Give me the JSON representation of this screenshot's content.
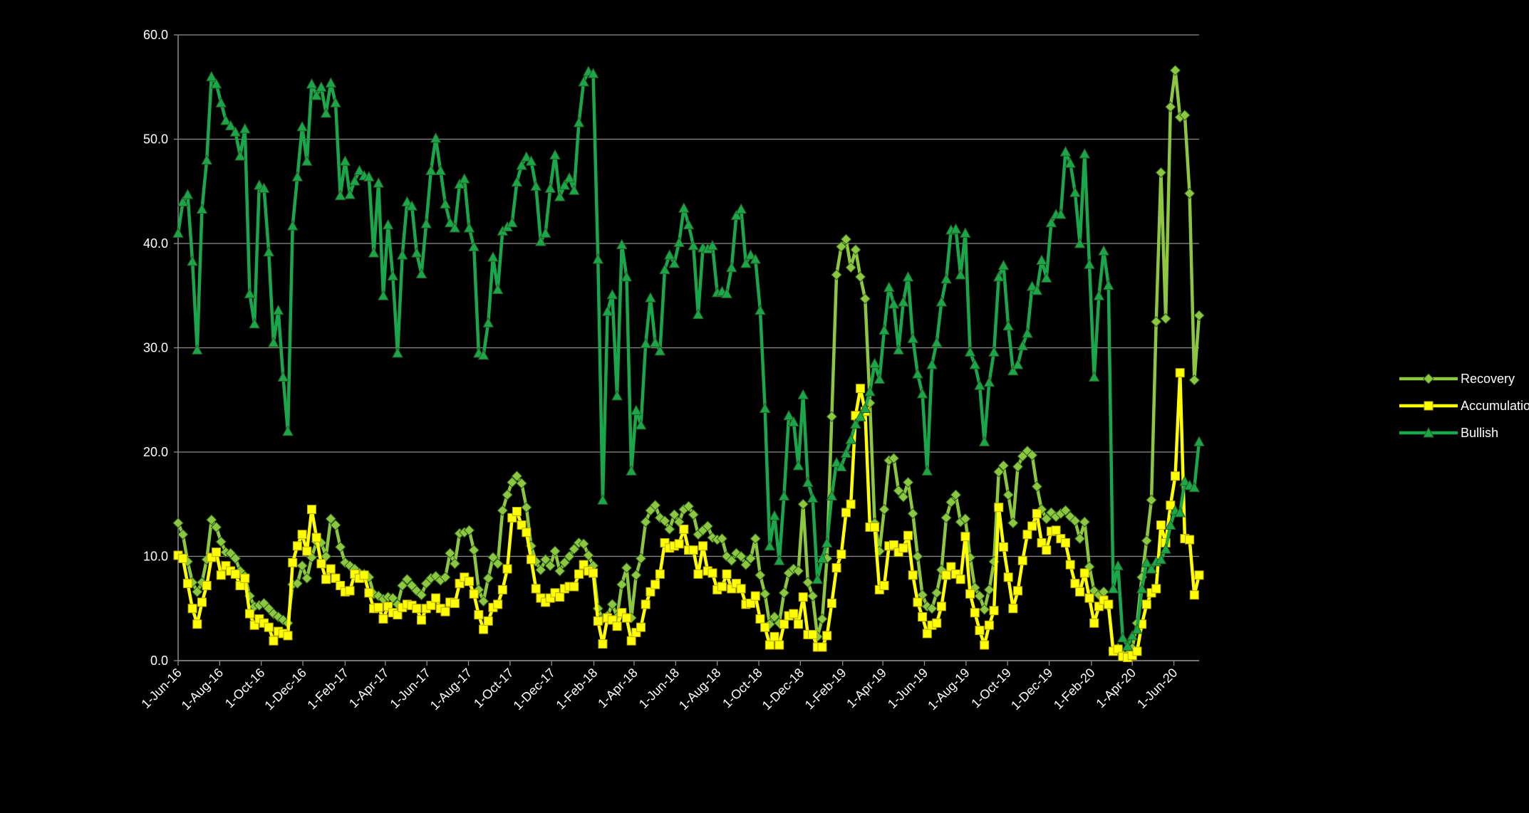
{
  "chart_data": {
    "type": "line",
    "x": [
      "2016-06-01",
      "2016-06-08",
      "2016-06-15",
      "2016-06-22",
      "2016-06-29",
      "2016-07-06",
      "2016-07-13",
      "2016-07-20",
      "2016-07-27",
      "2016-08-03",
      "2016-08-10",
      "2016-08-17",
      "2016-08-24",
      "2016-08-31",
      "2016-09-07",
      "2016-09-14",
      "2016-09-21",
      "2016-09-28",
      "2016-10-05",
      "2016-10-12",
      "2016-10-19",
      "2016-10-26",
      "2016-11-02",
      "2016-11-09",
      "2016-11-16",
      "2016-11-23",
      "2016-11-30",
      "2016-12-07",
      "2016-12-14",
      "2016-12-21",
      "2016-12-28",
      "2017-01-04",
      "2017-01-11",
      "2017-01-18",
      "2017-01-25",
      "2017-02-01",
      "2017-02-08",
      "2017-02-15",
      "2017-02-22",
      "2017-03-01",
      "2017-03-08",
      "2017-03-15",
      "2017-03-22",
      "2017-03-29",
      "2017-04-05",
      "2017-04-12",
      "2017-04-19",
      "2017-04-26",
      "2017-05-03",
      "2017-05-10",
      "2017-05-17",
      "2017-05-24",
      "2017-05-31",
      "2017-06-07",
      "2017-06-14",
      "2017-06-21",
      "2017-06-28",
      "2017-07-05",
      "2017-07-12",
      "2017-07-19",
      "2017-07-26",
      "2017-08-02",
      "2017-08-09",
      "2017-08-16",
      "2017-08-23",
      "2017-08-30",
      "2017-09-06",
      "2017-09-13",
      "2017-09-20",
      "2017-09-27",
      "2017-10-04",
      "2017-10-11",
      "2017-10-18",
      "2017-10-25",
      "2017-11-01",
      "2017-11-08",
      "2017-11-15",
      "2017-11-22",
      "2017-11-29",
      "2017-12-06",
      "2017-12-13",
      "2017-12-20",
      "2017-12-27",
      "2018-01-03",
      "2018-01-10",
      "2018-01-17",
      "2018-01-24",
      "2018-01-31",
      "2018-02-07",
      "2018-02-14",
      "2018-02-21",
      "2018-02-28",
      "2018-03-07",
      "2018-03-14",
      "2018-03-21",
      "2018-03-28",
      "2018-04-04",
      "2018-04-11",
      "2018-04-18",
      "2018-04-25",
      "2018-05-02",
      "2018-05-09",
      "2018-05-16",
      "2018-05-23",
      "2018-05-30",
      "2018-06-06",
      "2018-06-13",
      "2018-06-20",
      "2018-06-27",
      "2018-07-04",
      "2018-07-11",
      "2018-07-18",
      "2018-07-25",
      "2018-08-01",
      "2018-08-08",
      "2018-08-15",
      "2018-08-22",
      "2018-08-29",
      "2018-09-05",
      "2018-09-12",
      "2018-09-19",
      "2018-09-26",
      "2018-10-03",
      "2018-10-10",
      "2018-10-17",
      "2018-10-24",
      "2018-10-31",
      "2018-11-07",
      "2018-11-14",
      "2018-11-21",
      "2018-11-28",
      "2018-12-05",
      "2018-12-12",
      "2018-12-19",
      "2018-12-26",
      "2019-01-02",
      "2019-01-09",
      "2019-01-16",
      "2019-01-23",
      "2019-01-30",
      "2019-02-06",
      "2019-02-13",
      "2019-02-20",
      "2019-02-27",
      "2019-03-06",
      "2019-03-13",
      "2019-03-20",
      "2019-03-27",
      "2019-04-03",
      "2019-04-10",
      "2019-04-17",
      "2019-04-24",
      "2019-05-01",
      "2019-05-08",
      "2019-05-15",
      "2019-05-22",
      "2019-05-29",
      "2019-06-05",
      "2019-06-12",
      "2019-06-19",
      "2019-06-26",
      "2019-07-03",
      "2019-07-10",
      "2019-07-17",
      "2019-07-24",
      "2019-07-31",
      "2019-08-07",
      "2019-08-14",
      "2019-08-21",
      "2019-08-28",
      "2019-09-04",
      "2019-09-11",
      "2019-09-18",
      "2019-09-25",
      "2019-10-02",
      "2019-10-09",
      "2019-10-16",
      "2019-10-23",
      "2019-10-30",
      "2019-11-06",
      "2019-11-13",
      "2019-11-20",
      "2019-11-27",
      "2019-12-04",
      "2019-12-11",
      "2019-12-18",
      "2019-12-25",
      "2020-01-01",
      "2020-01-08",
      "2020-01-15",
      "2020-01-22",
      "2020-01-29",
      "2020-02-05",
      "2020-02-12",
      "2020-02-19",
      "2020-02-26",
      "2020-03-04",
      "2020-03-11",
      "2020-03-18",
      "2020-03-25",
      "2020-04-01",
      "2020-04-08",
      "2020-04-15",
      "2020-04-22",
      "2020-04-29",
      "2020-05-06",
      "2020-05-13",
      "2020-05-20",
      "2020-05-27",
      "2020-06-03",
      "2020-06-10",
      "2020-06-17",
      "2020-06-24",
      "2020-07-01",
      "2020-07-08"
    ],
    "series": [
      {
        "name": "Recovery",
        "color": "#8dc63f",
        "marker": "diamond",
        "values": [
          13.2,
          12.1,
          9.5,
          7.5,
          6.6,
          7.5,
          9.7,
          13.5,
          12.8,
          11.4,
          10.4,
          10.3,
          9.8,
          8.6,
          8.1,
          6.2,
          5.2,
          5.3,
          5.5,
          5,
          4.5,
          4.2,
          3.9,
          3.6,
          7.3,
          7.4,
          9.1,
          7.9,
          9.9,
          11.4,
          11.3,
          10,
          13.6,
          13,
          10.9,
          9.4,
          9.1,
          8.8,
          8.4,
          8.3,
          8,
          6.4,
          6.2,
          5.9,
          6.1,
          6,
          5.4,
          7.2,
          7.8,
          7.2,
          6.7,
          6.3,
          7.4,
          7.9,
          8.1,
          7.7,
          8,
          10.3,
          9.3,
          12.2,
          12.3,
          12.5,
          10.6,
          6.8,
          5.7,
          7.9,
          9.9,
          9.3,
          14.4,
          15.9,
          17.1,
          17.7,
          17,
          14.7,
          11,
          9.5,
          8.7,
          9.7,
          9.1,
          10.5,
          8.6,
          9.4,
          10,
          10.7,
          11.3,
          11.2,
          10.1,
          9.1,
          5,
          4,
          4.3,
          5.4,
          4.2,
          7.3,
          8.9,
          4.1,
          8.2,
          9.8,
          13.3,
          14.4,
          14.9,
          13.7,
          13.4,
          12.6,
          14,
          13.3,
          14.5,
          14.8,
          14,
          12.1,
          12.5,
          12.9,
          11.8,
          11.6,
          11.7,
          10,
          9.6,
          10.3,
          10,
          9.2,
          9.8,
          11.7,
          8.2,
          6.4,
          3.5,
          4.2,
          3.6,
          6.5,
          8.4,
          8.8,
          8.6,
          15,
          7.5,
          6.2,
          2.3,
          4,
          9.8,
          23.4,
          37,
          39.7,
          40.4,
          37.7,
          39.4,
          36.8,
          34.7,
          24.7,
          13.2,
          10.5,
          14.5,
          19.2,
          19.4,
          16.3,
          15.7,
          17.1,
          14.1,
          10,
          6.3,
          5.2,
          5,
          6.5,
          8.7,
          13.7,
          15.2,
          15.9,
          13.3,
          13.6,
          9.9,
          7,
          6.2,
          4.9,
          6.8,
          9.5,
          18.1,
          18.7,
          15.9,
          13.2,
          18.6,
          19.6,
          20.1,
          19.7,
          16.7,
          14.5,
          13.6,
          14.2,
          13.8,
          14.1,
          14.4,
          13.8,
          13.4,
          11.7,
          13.3,
          9,
          6.7,
          6.3,
          6.6,
          5.2,
          1,
          1.2,
          0.6,
          0.6,
          1.2,
          3.6,
          8,
          11.5,
          15.4,
          32.5,
          46.8,
          32.8,
          53.1,
          56.6,
          52.1,
          52.3,
          44.8,
          26.9,
          33.1
        ]
      },
      {
        "name": "Accumulation",
        "color": "#ffff00",
        "marker": "square",
        "values": [
          10.1,
          9.8,
          7.4,
          5,
          3.5,
          5.6,
          7.2,
          9.9,
          10.4,
          8.2,
          9.1,
          8.6,
          8.3,
          7.2,
          7.9,
          4.5,
          3.4,
          4,
          3.6,
          3.2,
          1.9,
          2.8,
          2.6,
          2.4,
          9.4,
          11,
          12.1,
          10.5,
          14.5,
          11.8,
          9.3,
          7.8,
          8.8,
          7.9,
          7.2,
          6.6,
          6.7,
          8.3,
          7.9,
          8.2,
          6.5,
          5,
          5.1,
          4,
          5.2,
          4.6,
          4.4,
          5.1,
          5.4,
          5.3,
          5,
          3.9,
          5,
          5.3,
          6,
          5,
          4.7,
          5.6,
          5.5,
          7.4,
          8,
          7.6,
          6.4,
          4.4,
          3,
          3.8,
          5.1,
          5.4,
          6.8,
          8.8,
          13.7,
          14.3,
          13,
          12.3,
          9.7,
          6.9,
          6,
          5.6,
          6,
          6.5,
          6.1,
          6.9,
          7.1,
          7.1,
          8.3,
          9.2,
          8.6,
          8.4,
          3.8,
          1.6,
          4.1,
          3.9,
          3.3,
          4.6,
          4.1,
          1.9,
          2.7,
          3.2,
          5.4,
          6.6,
          7.3,
          8.3,
          11.3,
          10.8,
          11,
          11.2,
          12.6,
          10.6,
          10.6,
          8.3,
          11,
          8.6,
          8.4,
          6.8,
          7.1,
          8.3,
          6.9,
          7.4,
          6.9,
          5.4,
          5.5,
          6.2,
          4,
          3.2,
          1.5,
          2.3,
          1.5,
          3.5,
          4.3,
          4.5,
          3.5,
          6.1,
          2.5,
          2.5,
          1.3,
          1.3,
          2.4,
          5.5,
          8.9,
          10.2,
          14.2,
          15,
          23.5,
          26.1,
          23.9,
          12.8,
          12.8,
          6.8,
          7.2,
          11,
          11.1,
          10.4,
          10.8,
          12,
          8.2,
          5.6,
          4.2,
          2.6,
          3.4,
          3.6,
          5.2,
          8.2,
          9,
          8.3,
          7.8,
          11.9,
          6.4,
          4.6,
          2.9,
          1.5,
          3.4,
          4.8,
          14.7,
          10.9,
          8,
          5,
          6.7,
          9.6,
          12.1,
          12.9,
          14.1,
          11.3,
          10.6,
          12.4,
          12.5,
          11.7,
          11.3,
          9.2,
          7.4,
          6.6,
          8.4,
          6,
          3.6,
          5.2,
          5.8,
          5.4,
          0.9,
          1.1,
          0.4,
          0.3,
          0.5,
          0.9,
          3.5,
          5.4,
          6.5,
          6.9,
          13,
          11.3,
          14.9,
          17.7,
          27.6,
          11.7,
          11.6,
          6.3,
          8.2
        ]
      },
      {
        "name": "Bullish",
        "color": "#1aa64a",
        "marker": "triangle",
        "values": [
          41,
          44,
          44.7,
          38.3,
          29.8,
          43.3,
          48,
          56,
          55.3,
          53.5,
          51.8,
          51.3,
          50.7,
          48.4,
          51,
          35.2,
          32.3,
          45.6,
          45.3,
          39.2,
          30.5,
          33.6,
          27.2,
          22,
          41.7,
          46.4,
          51.2,
          47.9,
          55.3,
          54.2,
          55,
          52.5,
          55.4,
          53.5,
          44.6,
          47.9,
          44.7,
          46,
          47,
          46.5,
          46.4,
          39.1,
          45.8,
          35,
          41.8,
          36.9,
          29.5,
          38.9,
          44,
          43.6,
          39.1,
          37.1,
          41.9,
          47,
          50.1,
          47,
          43.8,
          42,
          41.5,
          45.7,
          46.2,
          41.5,
          39.7,
          29.5,
          29.3,
          32.4,
          38.7,
          35.6,
          41.2,
          41.6,
          42,
          45.9,
          47.5,
          48.3,
          47.9,
          45.5,
          40.2,
          41,
          45.3,
          48.5,
          44.5,
          45.6,
          46.3,
          45.1,
          51.6,
          55.5,
          56.5,
          56.3,
          38.5,
          15.4,
          33.5,
          35.1,
          25.4,
          39.9,
          36.8,
          18.2,
          24,
          22.6,
          30.4,
          34.8,
          30.5,
          29.7,
          37.5,
          38.9,
          38.1,
          40.1,
          43.4,
          41.8,
          39.8,
          33.2,
          39.6,
          39.5,
          39.8,
          35.3,
          35.4,
          35.2,
          37.7,
          42.7,
          43.3,
          38.1,
          38.9,
          38.5,
          33.6,
          24.2,
          11,
          13.9,
          9.6,
          15.8,
          23.5,
          22.9,
          18.7,
          25.5,
          17.1,
          15.6,
          7.8,
          9.8,
          11.3,
          15.8,
          19,
          18.6,
          19.9,
          21.2,
          22.7,
          23.4,
          24.2,
          25.8,
          28.5,
          27,
          31.7,
          35.8,
          34.2,
          29.8,
          34.4,
          36.8,
          30.9,
          27.5,
          25.6,
          18.2,
          28.4,
          30.5,
          34.4,
          36.6,
          41.3,
          41.4,
          37,
          41,
          29.6,
          28.4,
          26.4,
          21,
          26.7,
          29.6,
          36.8,
          37.9,
          32.1,
          27.8,
          28.4,
          30.2,
          31.4,
          35.9,
          35.5,
          38.4,
          36.7,
          42,
          42.8,
          42.8,
          48.8,
          47.7,
          44.9,
          40,
          48.6,
          38,
          27.2,
          35,
          39.3,
          36,
          6.9,
          9.1,
          2.2,
          1.4,
          2.4,
          3,
          6.9,
          9.4,
          8.8,
          9.5,
          9.7,
          10.7,
          13,
          14.4,
          14.2,
          17.2,
          16.8,
          16.6,
          21
        ]
      }
    ],
    "xlim": [
      "2016-06-01",
      "2020-07-08"
    ],
    "xticks": [
      {
        "value": "2016-06-01",
        "label": "1-Jun-16"
      },
      {
        "value": "2016-08-01",
        "label": "1-Aug-16"
      },
      {
        "value": "2016-10-01",
        "label": "1-Oct-16"
      },
      {
        "value": "2016-12-01",
        "label": "1-Dec-16"
      },
      {
        "value": "2017-02-01",
        "label": "1-Feb-17"
      },
      {
        "value": "2017-04-01",
        "label": "1-Apr-17"
      },
      {
        "value": "2017-06-01",
        "label": "1-Jun-17"
      },
      {
        "value": "2017-08-01",
        "label": "1-Aug-17"
      },
      {
        "value": "2017-10-01",
        "label": "1-Oct-17"
      },
      {
        "value": "2017-12-01",
        "label": "1-Dec-17"
      },
      {
        "value": "2018-02-01",
        "label": "1-Feb-18"
      },
      {
        "value": "2018-04-01",
        "label": "1-Apr-18"
      },
      {
        "value": "2018-06-01",
        "label": "1-Jun-18"
      },
      {
        "value": "2018-08-01",
        "label": "1-Aug-18"
      },
      {
        "value": "2018-10-01",
        "label": "1-Oct-18"
      },
      {
        "value": "2018-12-01",
        "label": "1-Dec-18"
      },
      {
        "value": "2019-02-01",
        "label": "1-Feb-19"
      },
      {
        "value": "2019-04-01",
        "label": "1-Apr-19"
      },
      {
        "value": "2019-06-01",
        "label": "1-Jun-19"
      },
      {
        "value": "2019-08-01",
        "label": "1-Aug-19"
      },
      {
        "value": "2019-10-01",
        "label": "1-Oct-19"
      },
      {
        "value": "2019-12-01",
        "label": "1-Dec-19"
      },
      {
        "value": "2020-02-01",
        "label": "1-Feb-20"
      },
      {
        "value": "2020-04-01",
        "label": "1-Apr-20"
      },
      {
        "value": "2020-06-01",
        "label": "1-Jun-20"
      }
    ],
    "ylim": [
      0,
      60
    ],
    "yticks": [
      {
        "value": 0,
        "label": "0.0"
      },
      {
        "value": 10,
        "label": "10.0"
      },
      {
        "value": 20,
        "label": "20.0"
      },
      {
        "value": 30,
        "label": "30.0"
      },
      {
        "value": 40,
        "label": "40.0"
      },
      {
        "value": 50,
        "label": "50.0"
      },
      {
        "value": 60,
        "label": "60.0"
      }
    ],
    "grid": true,
    "legend": "right"
  }
}
